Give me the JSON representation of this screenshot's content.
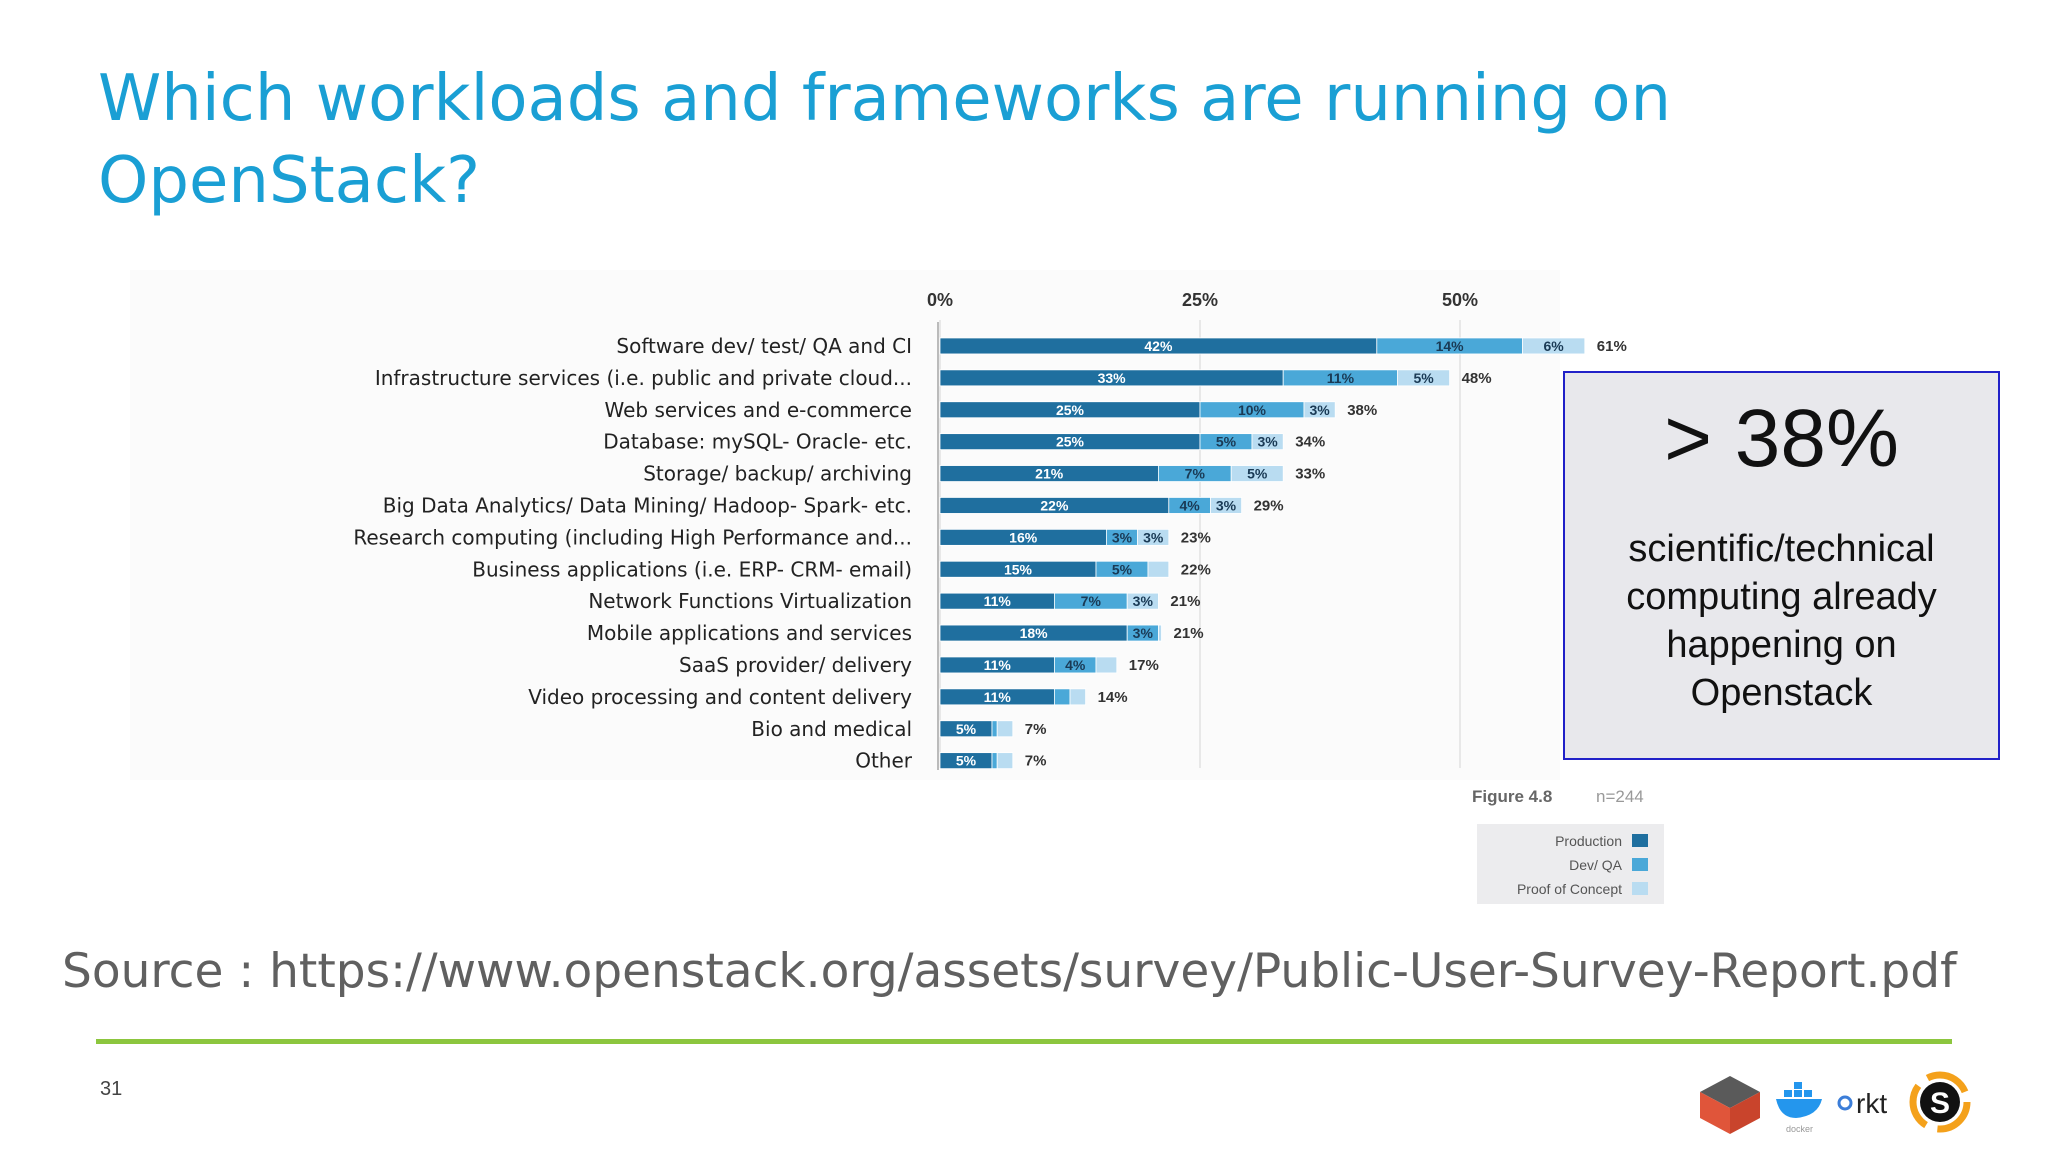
{
  "slide": {
    "title": "Which workloads and frameworks are running on OpenStack?",
    "source": "Source : https://www.openstack.org/assets/survey/Public-User-Survey-Report.pdf",
    "page_number": "31"
  },
  "callout": {
    "headline": "> 38%",
    "text": "scientific/technical computing already happening on Openstack"
  },
  "figure": {
    "label": "Figure 4.8",
    "n": "n=244"
  },
  "logos": {
    "docker_text": "docker",
    "rkt_text": "rkt"
  },
  "colors": {
    "title": "#1a9fd4",
    "production": "#1f6f9f",
    "devqa": "#4aa8d8",
    "poc": "#b9dcf1",
    "rule": "#8cc63e"
  },
  "chart_data": {
    "type": "bar",
    "orientation": "horizontal",
    "stacked": true,
    "x_ticks": [
      "0%",
      "25%",
      "50%"
    ],
    "xlim": [
      0,
      61
    ],
    "legend": {
      "placement": "bottom-right",
      "entries": [
        "Production",
        "Dev/ QA",
        "Proof of Concept"
      ]
    },
    "categories": [
      "Software dev/ test/ QA and CI",
      "Infrastructure services (i.e. public and private cloud...",
      "Web services and e-commerce",
      "Database: mySQL- Oracle- etc.",
      "Storage/  backup/ archiving",
      "Big Data Analytics/ Data Mining/ Hadoop- Spark- etc.",
      "Research computing (including High Performance and...",
      "Business applications (i.e. ERP- CRM- email)",
      "Network Functions Virtualization",
      "Mobile applications and services",
      "SaaS provider/ delivery",
      "Video processing and content delivery",
      "Bio and medical",
      "Other"
    ],
    "series": [
      {
        "name": "Production",
        "values": [
          42,
          33,
          25,
          25,
          21,
          22,
          16,
          15,
          11,
          18,
          11,
          11,
          5,
          5
        ],
        "labels": [
          "42%",
          "33%",
          "25%",
          "25%",
          "21%",
          "22%",
          "16%",
          "15%",
          "11%",
          "18%",
          "11%",
          "11%",
          "5%",
          "5%"
        ]
      },
      {
        "name": "Dev/ QA",
        "values": [
          14,
          11,
          10,
          5,
          7,
          4,
          3,
          5,
          7,
          3,
          4,
          1.5,
          0.5,
          0.5
        ],
        "labels": [
          "14%",
          "11%",
          "10%",
          "5%",
          "7%",
          "4%",
          "3%",
          "5%",
          "7%",
          "3%",
          "4%",
          "",
          "",
          ""
        ]
      },
      {
        "name": "Proof of Concept",
        "values": [
          6,
          5,
          3,
          3,
          5,
          3,
          3,
          2,
          3,
          0.3,
          2,
          1.5,
          1.5,
          1.5
        ],
        "labels": [
          "6%",
          "5%",
          "3%",
          "3%",
          "5%",
          "3%",
          "3%",
          "",
          "3%",
          "",
          "",
          "",
          "",
          ""
        ]
      }
    ],
    "totals": [
      "61%",
      "48%",
      "38%",
      "34%",
      "33%",
      "29%",
      "23%",
      "22%",
      "21%",
      "21%",
      "17%",
      "14%",
      "7%",
      "7%"
    ]
  }
}
